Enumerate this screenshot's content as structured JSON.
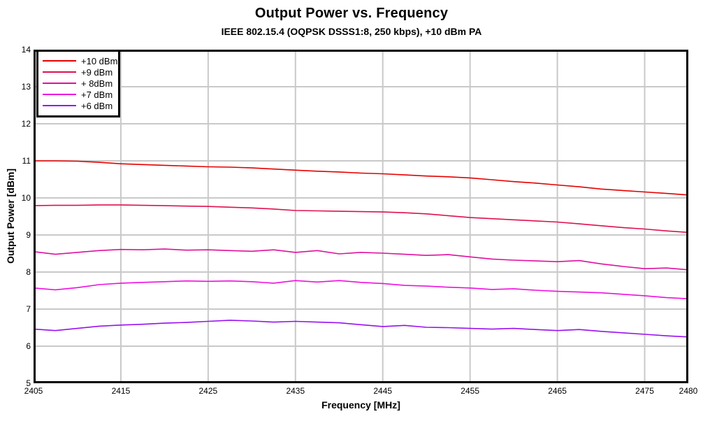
{
  "header": {
    "title": "Output Power vs. Frequency",
    "subtitle": "IEEE 802.15.4 (OQPSK DSSS1:8, 250 kbps), +10 dBm PA"
  },
  "chart_data": {
    "type": "line",
    "title": "Output Power vs. Frequency",
    "subtitle": "IEEE 802.15.4 (OQPSK DSSS1:8, 250 kbps), +10 dBm PA",
    "xlabel": "Frequency [MHz]",
    "ylabel": "Output Power [dBm]",
    "xlim": [
      2405,
      2480
    ],
    "ylim": [
      5,
      14
    ],
    "xticks": [
      2405,
      2415,
      2425,
      2435,
      2445,
      2455,
      2465,
      2475,
      2480
    ],
    "yticks": [
      5,
      6,
      7,
      8,
      9,
      10,
      11,
      12,
      13,
      14
    ],
    "grid": true,
    "legend_position": "top-left",
    "x": [
      2405,
      2407.5,
      2410,
      2412.5,
      2415,
      2417.5,
      2420,
      2422.5,
      2425,
      2427.5,
      2430,
      2432.5,
      2435,
      2437.5,
      2440,
      2442.5,
      2445,
      2447.5,
      2450,
      2452.5,
      2455,
      2457.5,
      2460,
      2462.5,
      2465,
      2467.5,
      2470,
      2472.5,
      2475,
      2477.5,
      2480
    ],
    "series": [
      {
        "name": "+10 dBm",
        "color": "#e60000",
        "values": [
          11.0,
          11.0,
          10.99,
          10.96,
          10.92,
          10.9,
          10.88,
          10.86,
          10.84,
          10.83,
          10.81,
          10.78,
          10.75,
          10.72,
          10.7,
          10.67,
          10.65,
          10.62,
          10.59,
          10.57,
          10.54,
          10.49,
          10.44,
          10.4,
          10.35,
          10.3,
          10.24,
          10.2,
          10.16,
          10.12,
          10.08
        ]
      },
      {
        "name": "+9 dBm",
        "color": "#e0104f",
        "values": [
          9.79,
          9.8,
          9.8,
          9.81,
          9.81,
          9.8,
          9.79,
          9.78,
          9.77,
          9.75,
          9.73,
          9.7,
          9.66,
          9.65,
          9.64,
          9.63,
          9.62,
          9.6,
          9.57,
          9.52,
          9.47,
          9.44,
          9.41,
          9.38,
          9.35,
          9.3,
          9.25,
          9.2,
          9.16,
          9.11,
          9.07
        ]
      },
      {
        "name": "+ 8dBm",
        "color": "#e010a0",
        "values": [
          8.55,
          8.48,
          8.53,
          8.58,
          8.61,
          8.6,
          8.62,
          8.59,
          8.6,
          8.58,
          8.56,
          8.6,
          8.53,
          8.58,
          8.49,
          8.53,
          8.51,
          8.48,
          8.45,
          8.47,
          8.41,
          8.35,
          8.32,
          8.3,
          8.28,
          8.31,
          8.22,
          8.15,
          8.09,
          8.11,
          8.06
        ]
      },
      {
        "name": "+7 dBm",
        "color": "#ee10e0",
        "values": [
          7.57,
          7.52,
          7.58,
          7.66,
          7.7,
          7.72,
          7.74,
          7.76,
          7.75,
          7.76,
          7.74,
          7.7,
          7.77,
          7.73,
          7.77,
          7.72,
          7.69,
          7.64,
          7.62,
          7.59,
          7.57,
          7.53,
          7.55,
          7.51,
          7.48,
          7.46,
          7.44,
          7.4,
          7.36,
          7.31,
          7.28
        ]
      },
      {
        "name": "+6 dBm",
        "color": "#9a10f0",
        "values": [
          6.46,
          6.42,
          6.48,
          6.54,
          6.57,
          6.59,
          6.62,
          6.64,
          6.67,
          6.7,
          6.68,
          6.65,
          6.67,
          6.65,
          6.63,
          6.58,
          6.53,
          6.56,
          6.51,
          6.5,
          6.48,
          6.46,
          6.48,
          6.45,
          6.42,
          6.45,
          6.4,
          6.36,
          6.32,
          6.28,
          6.25
        ]
      }
    ]
  },
  "style": {
    "grid_color": "#c9c9c9",
    "frame_color": "#000000",
    "background": "#ffffff"
  }
}
